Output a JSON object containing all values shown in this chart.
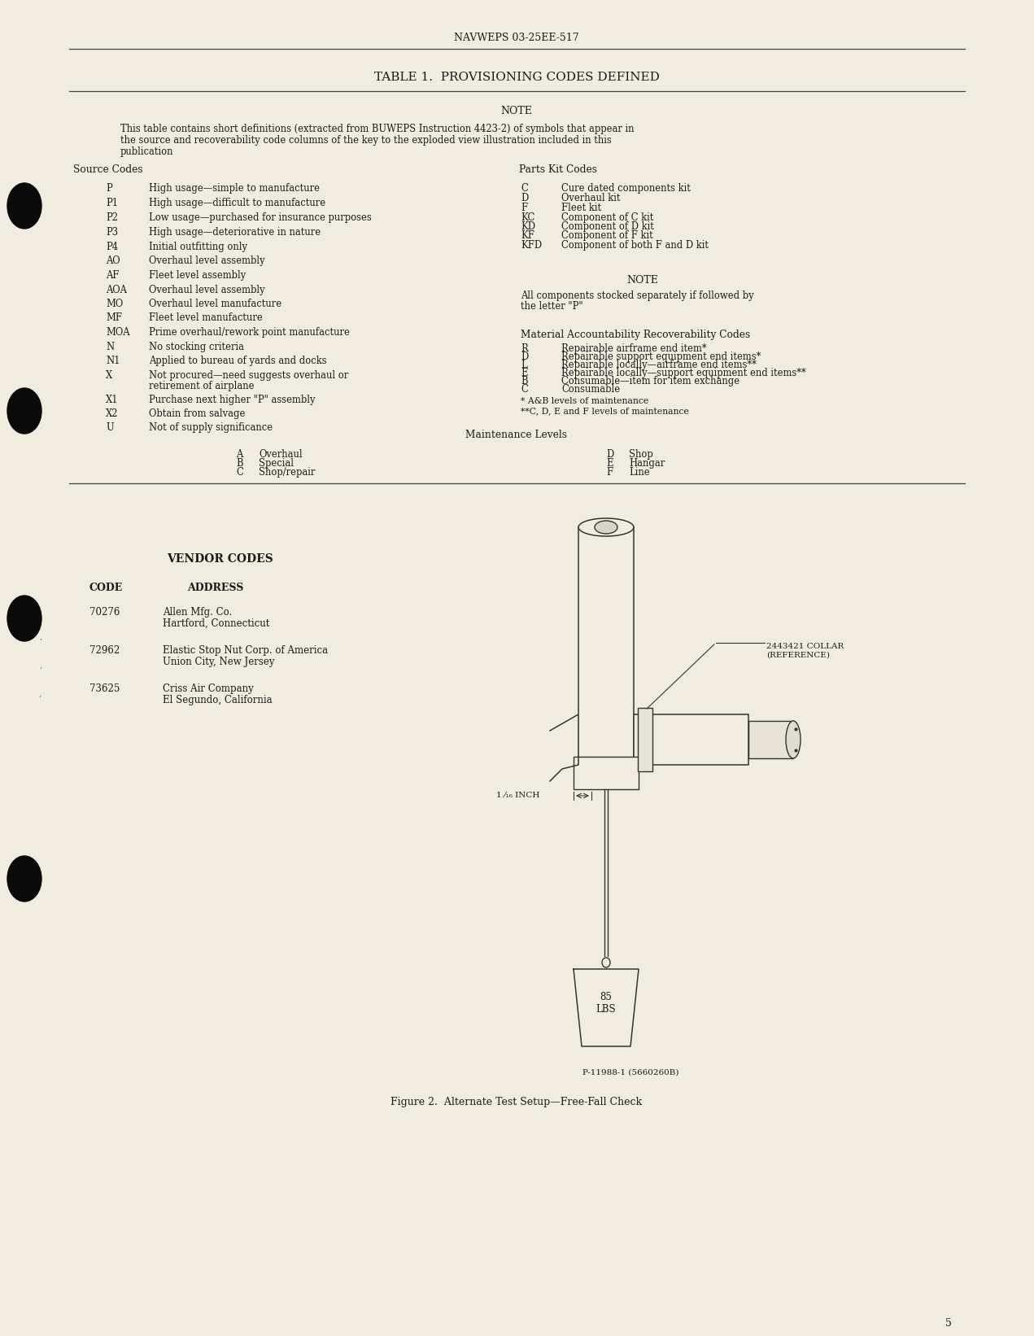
{
  "bg_color": "#f0ede0",
  "text_color": "#1a1a1a",
  "header": "NAVWEPS 03-25EE-517",
  "table_title": "TABLE 1.  PROVISIONING CODES DEFINED",
  "note_label": "NOTE",
  "note_text_line1": "This table contains short definitions (extracted from BUWEPS Instruction 4423-2) of symbols that appear in",
  "note_text_line2": "the source and recoverability code columns of the key to the exploded view illustration included in this",
  "note_text_line3": "publication",
  "source_codes_header": "Source Codes",
  "parts_kit_header": "Parts Kit Codes",
  "source_codes": [
    [
      "P",
      "High usage—simple to manufacture"
    ],
    [
      "P1",
      "High usage—difficult to manufacture"
    ],
    [
      "P2",
      "Low usage—purchased for insurance purposes"
    ],
    [
      "P3",
      "High usage—deteriorative in nature"
    ],
    [
      "P4",
      "Initial outfitting only"
    ],
    [
      "AO",
      "Overhaul level assembly"
    ],
    [
      "AF",
      "Fleet level assembly"
    ],
    [
      "AOA",
      "Overhaul level assembly"
    ],
    [
      "MO",
      "Overhaul level manufacture"
    ],
    [
      "MF",
      "Fleet level manufacture"
    ],
    [
      "MOA",
      "Prime overhaul/rework point manufacture"
    ],
    [
      "N",
      "No stocking criteria"
    ],
    [
      "N1",
      "Applied to bureau of yards and docks"
    ],
    [
      "X",
      "Not procured—need suggests overhaul or"
    ],
    [
      "",
      "retirement of airplane"
    ],
    [
      "X1",
      "Purchase next higher \"P\" assembly"
    ],
    [
      "X2",
      "Obtain from salvage"
    ],
    [
      "U",
      "Not of supply significance"
    ]
  ],
  "parts_kit_codes": [
    [
      "C",
      "Cure dated components kit"
    ],
    [
      "D",
      "Overhaul kit"
    ],
    [
      "F",
      "Fleet kit"
    ],
    [
      "KC",
      "Component of C kit"
    ],
    [
      "KD",
      "Component of D kit"
    ],
    [
      "KF",
      "Component of F kit"
    ],
    [
      "KFD",
      "Component of both F and D kit"
    ]
  ],
  "note2_label": "NOTE",
  "note2_text_line1": "All components stocked separately if followed by",
  "note2_text_line2": "the letter \"P\"",
  "marc_header": "Material Accountability Recoverability Codes",
  "marc_codes": [
    [
      "R",
      "Repairable airframe end item*"
    ],
    [
      "D",
      "Repairable support equipment end items*"
    ],
    [
      "L",
      "Repairable locally—airframe end items**"
    ],
    [
      "E",
      "Repairable locally—support equipment end items**"
    ],
    [
      "B",
      "Consumable—item for item exchange"
    ],
    [
      "C",
      "Consumable"
    ]
  ],
  "marc_note1": "* A&B levels of maintenance",
  "marc_note2": "**C, D, E and F levels of maintenance",
  "maint_header": "Maintenance Levels",
  "maint_left": [
    [
      "A",
      "Overhaul"
    ],
    [
      "B",
      "Special"
    ],
    [
      "C",
      "Shop/repair"
    ]
  ],
  "maint_right": [
    [
      "D",
      "Shop"
    ],
    [
      "E",
      "Hangar"
    ],
    [
      "F",
      "Line"
    ]
  ],
  "vendor_header": "VENDOR CODES",
  "vendor_col1": "CODE",
  "vendor_col2": "ADDRESS",
  "vendors": [
    [
      "70276",
      "Allen Mfg. Co.\nHartford, Connecticut"
    ],
    [
      "72962",
      "Elastic Stop Nut Corp. of America\nUnion City, New Jersey"
    ],
    [
      "73625",
      "Criss Air Company\nEl Segundo, California"
    ]
  ],
  "fig_caption": "Figure 2.  Alternate Test Setup—Free-Fall Check",
  "fig_part_label": "2443421 COLLAR\n(REFERENCE)",
  "fig_inch_label": "1 ⁄₁₆ INCH",
  "fig_wt_label": "85\nLBS",
  "fig_photo_label": "P-11988-1 (5660260B)",
  "page_number": "5",
  "bullet_color": "#0a0a0a",
  "line_color": "#444444",
  "draw_color": "#333333"
}
